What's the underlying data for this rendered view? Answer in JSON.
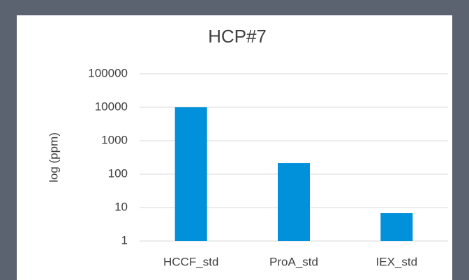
{
  "chart_data": {
    "type": "bar",
    "title": "HCP#7",
    "y_label": "log (ppm)",
    "categories": [
      "HCCF_std",
      "ProA_std",
      "IEX_std"
    ],
    "values": [
      10000,
      215,
      6.8
    ],
    "color": "#0091da",
    "log_scale": true,
    "ylim": [
      1,
      100000
    ],
    "yticks": [
      1,
      10,
      100,
      1000,
      10000,
      100000
    ],
    "grid": true
  }
}
